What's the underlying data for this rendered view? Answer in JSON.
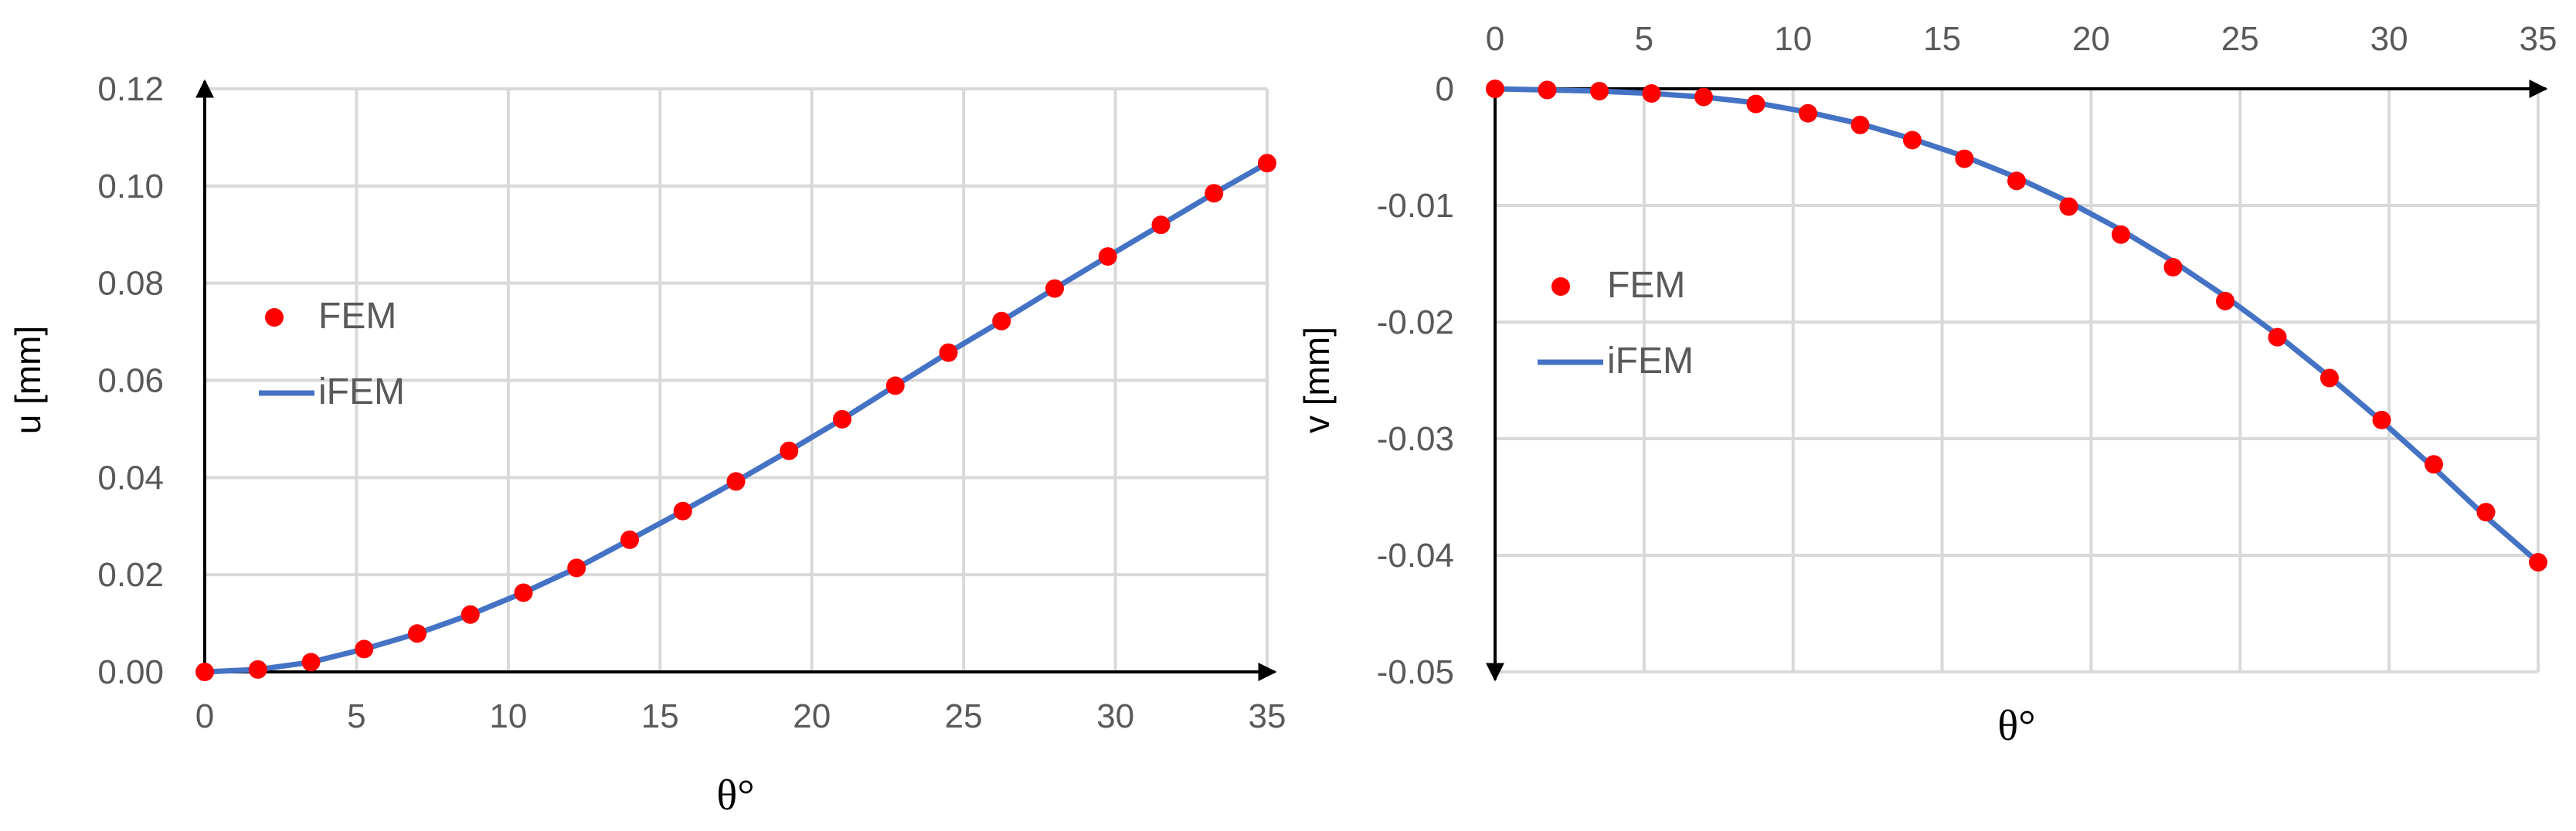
{
  "chart_data": [
    {
      "type": "line",
      "xlabel": "θ°",
      "ylabel": "u [mm]",
      "xlim": [
        0,
        35
      ],
      "ylim": [
        0,
        0.12
      ],
      "x_ticks": [
        0,
        5,
        10,
        15,
        20,
        25,
        30,
        35
      ],
      "y_ticks": [
        "0.00",
        "0.02",
        "0.04",
        "0.06",
        "0.08",
        "0.10",
        "0.12"
      ],
      "x_axis_position": "bottom",
      "grid": true,
      "legend_position": "left",
      "series": [
        {
          "name": "FEM",
          "marker": "circle",
          "color": "#ff0000",
          "x": [
            0,
            1.75,
            3.5,
            5.25,
            7,
            8.75,
            10.5,
            12.25,
            14,
            15.75,
            17.5,
            19.25,
            21,
            22.75,
            24.5,
            26.25,
            28,
            29.75,
            31.5,
            33.25,
            35
          ],
          "y": [
            0,
            0.0005,
            0.002,
            0.0047,
            0.0079,
            0.0118,
            0.0163,
            0.0214,
            0.0272,
            0.0331,
            0.0392,
            0.0455,
            0.052,
            0.0589,
            0.0657,
            0.0722,
            0.0789,
            0.0855,
            0.092,
            0.0985,
            0.1047
          ]
        },
        {
          "name": "iFEM",
          "marker": "line",
          "color": "#4472c4",
          "x": [
            0,
            1.75,
            3.5,
            5.25,
            7,
            8.75,
            10.5,
            12.25,
            14,
            15.75,
            17.5,
            19.25,
            21,
            22.75,
            24.5,
            26.25,
            28,
            29.75,
            31.5,
            33.25,
            35
          ],
          "y": [
            0,
            0.0005,
            0.002,
            0.0047,
            0.0079,
            0.0118,
            0.0163,
            0.0214,
            0.0272,
            0.0331,
            0.0392,
            0.0455,
            0.052,
            0.0589,
            0.0657,
            0.0722,
            0.0789,
            0.0855,
            0.092,
            0.0985,
            0.1047
          ]
        }
      ]
    },
    {
      "type": "line",
      "xlabel": "θ°",
      "ylabel": "v [mm]",
      "xlim": [
        0,
        35
      ],
      "ylim": [
        -0.05,
        0
      ],
      "x_ticks": [
        0,
        5,
        10,
        15,
        20,
        25,
        30,
        35
      ],
      "y_ticks": [
        "0",
        "-0.01",
        "-0.02",
        "-0.03",
        "-0.04",
        "-0.05"
      ],
      "x_axis_position": "top",
      "grid": true,
      "legend_position": "left",
      "series": [
        {
          "name": "FEM",
          "marker": "circle",
          "color": "#ff0000",
          "x": [
            0,
            1.75,
            3.5,
            5.25,
            7,
            8.75,
            10.5,
            12.25,
            14,
            15.75,
            17.5,
            19.25,
            21,
            22.75,
            24.5,
            26.25,
            28,
            29.75,
            31.5,
            33.25,
            35
          ],
          "y": [
            0,
            -0.0001,
            -0.0002,
            -0.0004,
            -0.0007,
            -0.0013,
            -0.0021,
            -0.0031,
            -0.0044,
            -0.006,
            -0.0079,
            -0.0101,
            -0.0125,
            -0.0153,
            -0.0182,
            -0.0213,
            -0.0248,
            -0.0284,
            -0.0322,
            -0.0363,
            -0.0406
          ]
        },
        {
          "name": "iFEM",
          "marker": "line",
          "color": "#4472c4",
          "x": [
            0,
            1.75,
            3.5,
            5.25,
            7,
            8.75,
            10.5,
            12.25,
            14,
            15.75,
            17.5,
            19.25,
            21,
            22.75,
            24.5,
            26.25,
            28,
            29.75,
            31.5,
            33.25,
            35
          ],
          "y": [
            0,
            -0.0001,
            -0.0002,
            -0.0004,
            -0.0007,
            -0.0012,
            -0.002,
            -0.003,
            -0.0043,
            -0.0058,
            -0.0076,
            -0.0097,
            -0.0121,
            -0.0148,
            -0.0178,
            -0.0211,
            -0.0247,
            -0.0285,
            -0.0325,
            -0.0367,
            -0.0406
          ]
        }
      ]
    }
  ]
}
